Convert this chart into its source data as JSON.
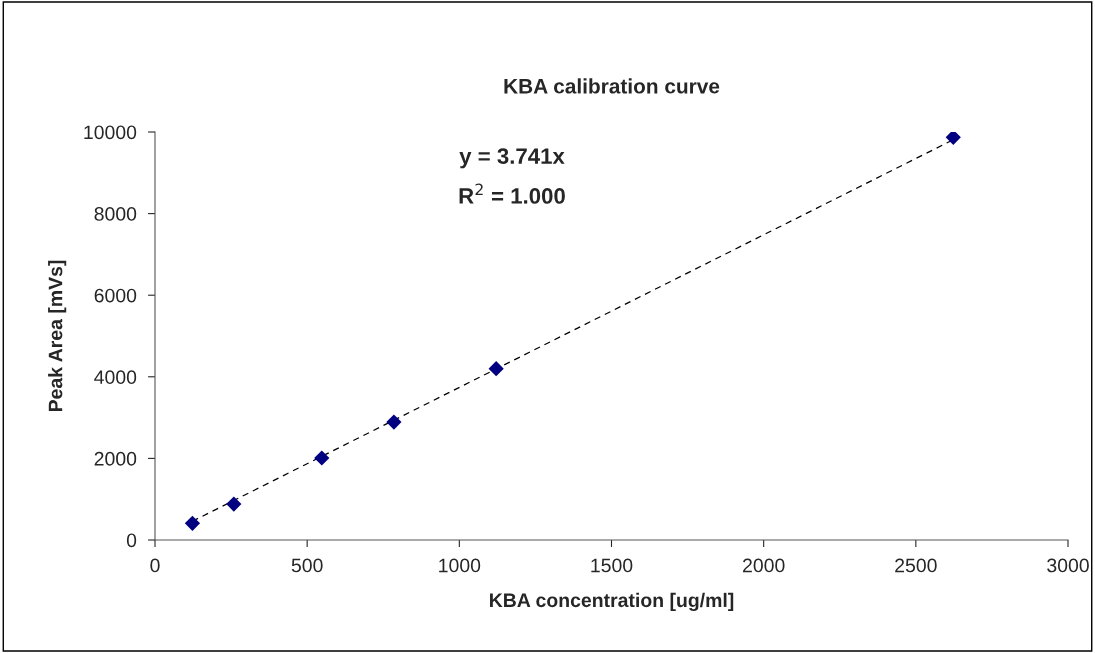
{
  "chart_data": {
    "type": "scatter",
    "title": "KBA calibration curve",
    "xlabel": "KBA concentration [ug/ml]",
    "ylabel": "Peak Area [mVs]",
    "x": [
      123,
      259,
      548,
      785,
      1121,
      2623
    ],
    "series": [
      {
        "color": "#000080",
        "marker": "diamond",
        "values": [
          410,
          880,
          2010,
          2890,
          4200,
          9870
        ]
      },
      {
        "type": "line",
        "color": "#000000",
        "line_style": "dashed",
        "marker": "none",
        "x": [
          123,
          2623
        ],
        "values": [
          460,
          9810
        ]
      }
    ],
    "annotations": [
      "y = 3.741x",
      "R$^{2}$ = 1.000"
    ],
    "xlim": [
      0,
      3000
    ],
    "xticks": [
      0,
      500,
      1000,
      1500,
      2000,
      2500,
      3000
    ],
    "ylim": [
      0,
      10000
    ],
    "yticks": [
      0,
      2000,
      4000,
      6000,
      8000,
      10000
    ],
    "grid": false,
    "legend": false
  }
}
